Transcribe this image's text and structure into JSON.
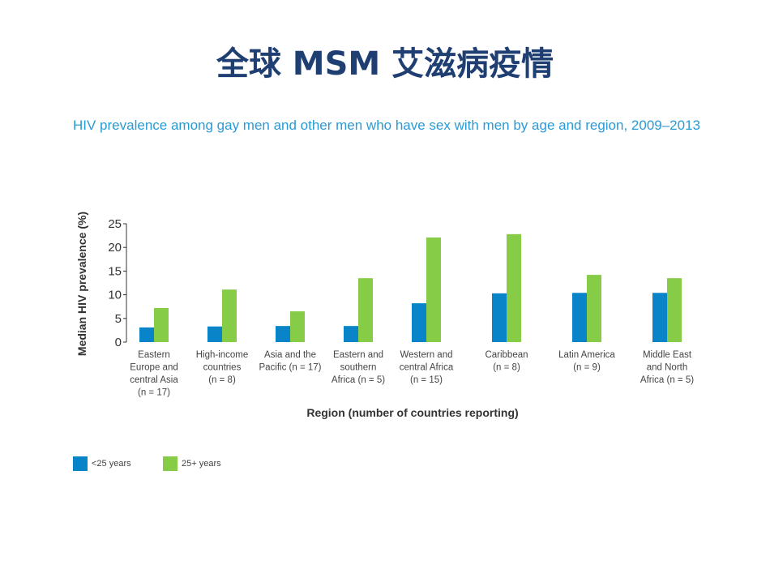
{
  "title": "全球 MSM 艾滋病疫情",
  "chart_data": {
    "type": "bar",
    "title": "HIV prevalence among gay men and other men who have sex with men by age and region, 2009–2013",
    "xlabel": "Region (number of countries reporting)",
    "ylabel": "Median HIV prevalence (%)",
    "ylim": [
      0,
      25
    ],
    "yticks": [
      "0",
      "5",
      "10",
      "15",
      "20",
      "25"
    ],
    "grid": false,
    "legend_position": "bottom-left",
    "categories": [
      [
        "Eastern",
        "Europe and",
        "central Asia",
        "(n = 17)"
      ],
      [
        "High-income",
        "countries",
        "(n = 8)"
      ],
      [
        "Asia and the",
        "Pacific (n = 17)"
      ],
      [
        "Eastern and",
        "southern",
        "Africa (n = 5)"
      ],
      [
        "Western and",
        "central Africa",
        "(n = 15)"
      ],
      [
        "Caribbean",
        "(n = 8)"
      ],
      [
        "Latin America",
        "(n = 9)"
      ],
      [
        "Middle East",
        "and North",
        "Africa (n = 5)"
      ]
    ],
    "series": [
      {
        "name": "<25 years",
        "color": "#0a84c9",
        "values": [
          3.1,
          3.3,
          3.4,
          3.4,
          8.2,
          10.3,
          10.4,
          10.4
        ]
      },
      {
        "name": "25+ years",
        "color": "#86cc47",
        "values": [
          7.2,
          11.1,
          6.5,
          13.5,
          22.1,
          22.8,
          14.2,
          13.5
        ]
      }
    ]
  }
}
